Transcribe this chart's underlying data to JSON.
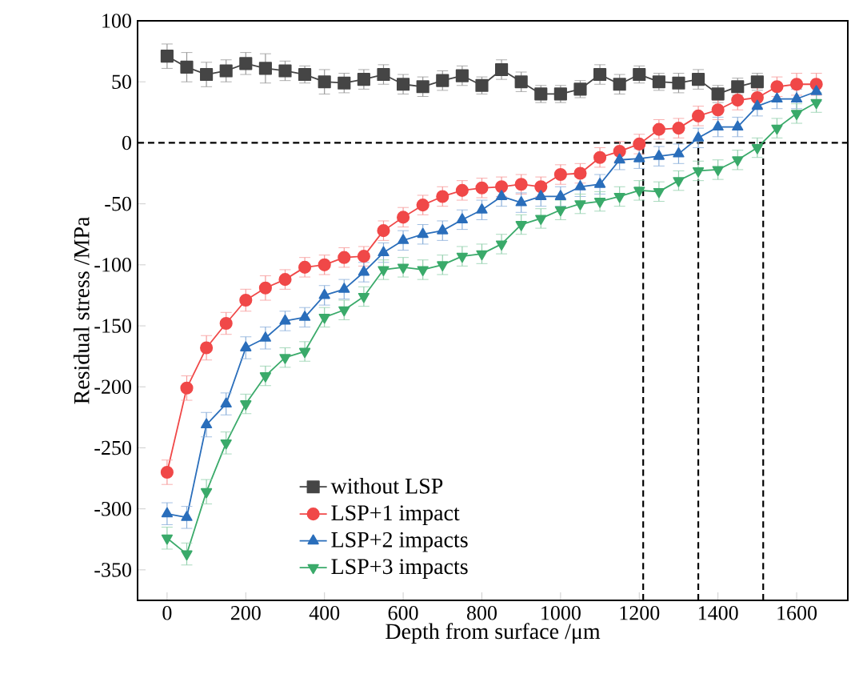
{
  "chart_data": {
    "type": "line",
    "xlabel": "Depth from surface /μm",
    "ylabel": "Residual stress /MPa",
    "xlim": [
      -75,
      1730
    ],
    "ylim": [
      -375,
      100
    ],
    "xticks": [
      0,
      200,
      400,
      600,
      800,
      1000,
      1200,
      1400,
      1600
    ],
    "yticks": [
      -350,
      -300,
      -250,
      -200,
      -150,
      -100,
      -50,
      0,
      50,
      100
    ],
    "grid": false,
    "legend": "bottom",
    "ref_lines": [
      {
        "axis": "y",
        "value": 0,
        "line_style": "dashed",
        "color": "#000000"
      },
      {
        "axis": "x",
        "value": 1210,
        "line_style": "dashed",
        "color": "#000000"
      },
      {
        "axis": "x",
        "value": 1350,
        "line_style": "dashed",
        "color": "#000000"
      },
      {
        "axis": "x",
        "value": 1515,
        "line_style": "dashed",
        "color": "#000000"
      }
    ],
    "series": [
      {
        "name": "without LSP",
        "color": "#454545",
        "marker": "square",
        "x": [
          0,
          50,
          100,
          150,
          200,
          250,
          300,
          350,
          400,
          450,
          500,
          550,
          600,
          650,
          700,
          750,
          800,
          850,
          900,
          950,
          1000,
          1050,
          1100,
          1150,
          1200,
          1250,
          1300,
          1350,
          1400,
          1450,
          1500
        ],
        "values": [
          71,
          62,
          56,
          59,
          65,
          61,
          59,
          56,
          50,
          49,
          52,
          56,
          48,
          46,
          51,
          55,
          47,
          60,
          50,
          40,
          40,
          44,
          56,
          48,
          56,
          50,
          49,
          52,
          40,
          46,
          50
        ],
        "errors": [
          10,
          12,
          10,
          9,
          9,
          12,
          8,
          7,
          10,
          8,
          8,
          8,
          8,
          8,
          8,
          8,
          7,
          8,
          8,
          7,
          7,
          7,
          8,
          8,
          7,
          7,
          8,
          8,
          7,
          7,
          7
        ]
      },
      {
        "name": "LSP+1 impact",
        "color": "#f04848",
        "marker": "circle",
        "x": [
          0,
          50,
          100,
          150,
          200,
          250,
          300,
          350,
          400,
          450,
          500,
          550,
          600,
          650,
          700,
          750,
          800,
          850,
          900,
          950,
          1000,
          1050,
          1100,
          1150,
          1200,
          1250,
          1300,
          1350,
          1400,
          1450,
          1500,
          1550,
          1600,
          1650
        ],
        "values": [
          -270,
          -201,
          -168,
          -148,
          -129,
          -119,
          -112,
          -102,
          -100,
          -94,
          -93,
          -72,
          -61,
          -51,
          -44,
          -39,
          -37,
          -36,
          -34,
          -36,
          -26,
          -25,
          -12,
          -7,
          -1,
          11,
          12,
          22,
          27,
          35,
          37,
          46,
          48,
          48
        ],
        "errors": [
          10,
          10,
          10,
          9,
          9,
          10,
          8,
          8,
          8,
          8,
          8,
          8,
          8,
          8,
          8,
          8,
          8,
          8,
          8,
          8,
          8,
          8,
          8,
          8,
          8,
          8,
          8,
          8,
          8,
          8,
          8,
          8,
          9,
          9
        ]
      },
      {
        "name": "LSP+2 impacts",
        "color": "#2a6ebb",
        "marker": "triangle",
        "x": [
          0,
          50,
          100,
          150,
          200,
          250,
          300,
          350,
          400,
          450,
          500,
          550,
          600,
          650,
          700,
          750,
          800,
          850,
          900,
          950,
          1000,
          1050,
          1100,
          1150,
          1200,
          1250,
          1300,
          1350,
          1400,
          1450,
          1500,
          1550,
          1600,
          1650
        ],
        "values": [
          -304,
          -307,
          -231,
          -214,
          -168,
          -160,
          -146,
          -143,
          -125,
          -120,
          -106,
          -90,
          -80,
          -75,
          -72,
          -63,
          -55,
          -44,
          -49,
          -44,
          -44,
          -36,
          -34,
          -14,
          -13,
          -11,
          -9,
          4,
          13,
          13,
          30,
          36,
          36,
          42
        ],
        "errors": [
          9,
          9,
          10,
          9,
          9,
          9,
          8,
          8,
          8,
          8,
          8,
          8,
          8,
          8,
          8,
          8,
          8,
          8,
          8,
          8,
          8,
          8,
          8,
          8,
          8,
          8,
          8,
          8,
          8,
          8,
          8,
          8,
          8,
          8
        ]
      },
      {
        "name": "LSP+3 impacts",
        "color": "#3aaa6a",
        "marker": "triangle_down",
        "x": [
          0,
          50,
          100,
          150,
          200,
          250,
          300,
          350,
          400,
          450,
          500,
          550,
          600,
          650,
          700,
          750,
          800,
          850,
          900,
          950,
          1000,
          1050,
          1100,
          1150,
          1200,
          1250,
          1300,
          1350,
          1400,
          1450,
          1500,
          1550,
          1600,
          1650
        ],
        "values": [
          -324,
          -337,
          -286,
          -246,
          -214,
          -191,
          -176,
          -171,
          -143,
          -137,
          -126,
          -104,
          -102,
          -104,
          -100,
          -93,
          -91,
          -83,
          -67,
          -62,
          -55,
          -50,
          -48,
          -44,
          -39,
          -40,
          -31,
          -23,
          -22,
          -14,
          -4,
          12,
          24,
          33
        ],
        "errors": [
          9,
          9,
          10,
          9,
          8,
          8,
          8,
          8,
          8,
          8,
          8,
          8,
          8,
          8,
          8,
          8,
          8,
          8,
          8,
          8,
          8,
          8,
          8,
          8,
          8,
          8,
          8,
          8,
          8,
          8,
          8,
          8,
          8,
          8
        ]
      }
    ]
  }
}
